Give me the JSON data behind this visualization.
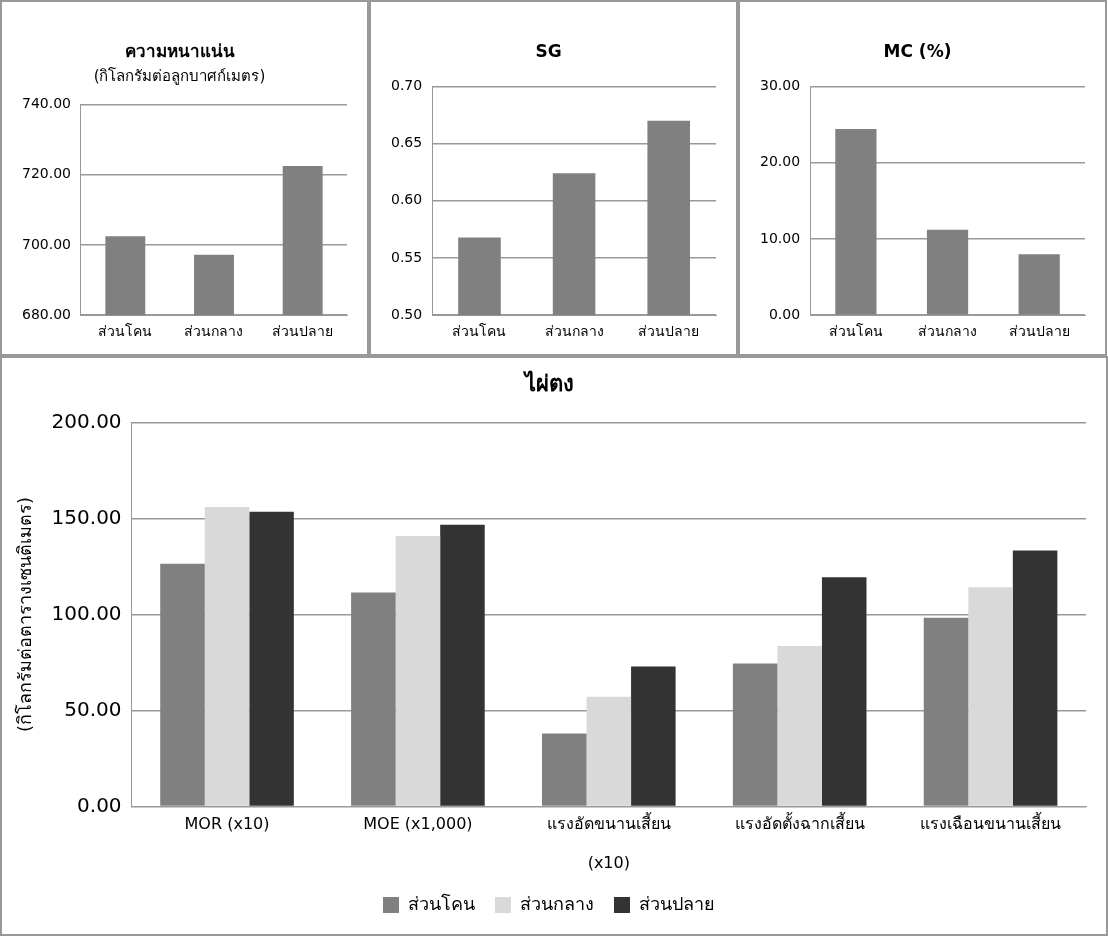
{
  "chart_data": [
    {
      "type": "bar",
      "title": "ความหนาแน่น",
      "subtitle": "(กิโลกรัมต่อลูกบาศก์เมตร)",
      "categories": [
        "ส่วนโคน",
        "ส่วนกลาง",
        "ส่วนปลาย"
      ],
      "values": [
        702.5,
        697.2,
        722.5
      ],
      "color": "#808080",
      "ylim": [
        680,
        740
      ],
      "yticks": [
        {
          "value": 680,
          "label": "680.00"
        },
        {
          "value": 700,
          "label": "700.00"
        },
        {
          "value": 720,
          "label": "720.00"
        },
        {
          "value": 740,
          "label": "740.00"
        }
      ],
      "grid": "y",
      "legend": false
    },
    {
      "type": "bar",
      "title": "SG",
      "categories": [
        "ส่วนโคน",
        "ส่วนกลาง",
        "ส่วนปลาย"
      ],
      "values": [
        0.568,
        0.624,
        0.67
      ],
      "color": "#808080",
      "ylim": [
        0.5,
        0.7
      ],
      "yticks": [
        {
          "value": 0.5,
          "label": "0.50"
        },
        {
          "value": 0.55,
          "label": "0.55"
        },
        {
          "value": 0.6,
          "label": "0.60"
        },
        {
          "value": 0.65,
          "label": "0.65"
        },
        {
          "value": 0.7,
          "label": "0.70"
        }
      ],
      "grid": "y",
      "legend": false
    },
    {
      "type": "bar",
      "title": "MC (%)",
      "categories": [
        "ส่วนโคน",
        "ส่วนกลาง",
        "ส่วนปลาย"
      ],
      "values": [
        24.4,
        11.2,
        8.0
      ],
      "color": "#808080",
      "ylim": [
        0,
        30
      ],
      "yticks": [
        {
          "value": 0,
          "label": "0.00"
        },
        {
          "value": 10,
          "label": "10.00"
        },
        {
          "value": 20,
          "label": "20.00"
        },
        {
          "value": 30,
          "label": "30.00"
        }
      ],
      "grid": "y",
      "legend": false
    },
    {
      "type": "bar",
      "title": "ไผ่ตง",
      "ylabel": "(กิโลกรัมต่อตารางเซนติเมตร)",
      "categories": [
        "MOR (x10)",
        "MOE (x1,000)",
        "แรงอัดขนานเสี้ยน (x10)",
        "แรงอัดตั้งฉากเสี้ยน",
        "แรงเฉือนขนานเสี้ยน"
      ],
      "series": [
        {
          "name": "ส่วนโคน",
          "color": "#808080",
          "values": [
            126.4,
            111.4,
            38,
            74.4,
            98.2
          ]
        },
        {
          "name": "ส่วนกลาง",
          "color": "#d9d9d9",
          "values": [
            156,
            140.8,
            57.1,
            83.5,
            114.2
          ]
        },
        {
          "name": "ส่วนปลาย",
          "color": "#333333",
          "values": [
            153.4,
            146.7,
            72.9,
            119.4,
            133.3
          ]
        }
      ],
      "ylim": [
        0,
        200
      ],
      "yticks": [
        {
          "value": 0,
          "label": "0.00"
        },
        {
          "value": 50,
          "label": "50.00"
        },
        {
          "value": 100,
          "label": "100.00"
        },
        {
          "value": 150,
          "label": "150.00"
        },
        {
          "value": 200,
          "label": "200.00"
        }
      ],
      "grid": "y",
      "legend": "bottom"
    }
  ]
}
